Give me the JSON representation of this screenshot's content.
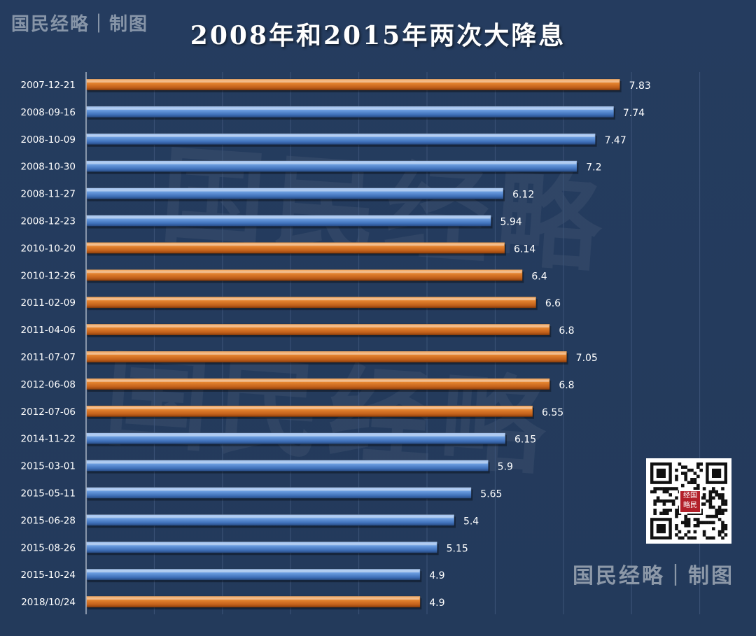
{
  "title": "2008年和2015年两次大降息",
  "brand": {
    "top_left": "国民经略｜制图",
    "bottom_right": "国民经略｜制图",
    "watermark": "国民经略",
    "qr_badge": "经国略民"
  },
  "colors": {
    "background": "#243a5c",
    "hike": "#e07b2a",
    "cut": "#5b8fd6",
    "label": "#ffffff",
    "grid": "#3d5478"
  },
  "chart_data": {
    "type": "bar",
    "orientation": "horizontal",
    "title": "2008年和2015年两次大降息",
    "xlabel": "",
    "ylabel": "",
    "xlim": [
      0,
      10
    ],
    "grid": true,
    "categories": [
      "2007-12-21",
      "2008-09-16",
      "2008-10-09",
      "2008-10-30",
      "2008-11-27",
      "2008-12-23",
      "2010-10-20",
      "2010-12-26",
      "2011-02-09",
      "2011-04-06",
      "2011-07-07",
      "2012-06-08",
      "2012-07-06",
      "2014-11-22",
      "2015-03-01",
      "2015-05-11",
      "2015-06-28",
      "2015-08-26",
      "2015-10-24",
      "2018/10/24"
    ],
    "values": [
      7.83,
      7.74,
      7.47,
      7.2,
      6.12,
      5.94,
      6.14,
      6.4,
      6.6,
      6.8,
      7.05,
      6.8,
      6.55,
      6.15,
      5.9,
      5.65,
      5.4,
      5.15,
      4.9,
      4.9
    ],
    "labels": [
      "7.83",
      "7.74",
      "7.47",
      "7.2",
      "6.12",
      "5.94",
      "6.14",
      "6.4",
      "6.6",
      "6.8",
      "7.05",
      "6.8",
      "6.55",
      "6.15",
      "5.9",
      "5.65",
      "5.4",
      "5.15",
      "4.9",
      "4.9"
    ],
    "bar_colors": [
      "#e07b2a",
      "#5b8fd6",
      "#5b8fd6",
      "#5b8fd6",
      "#5b8fd6",
      "#5b8fd6",
      "#e07b2a",
      "#e07b2a",
      "#e07b2a",
      "#e07b2a",
      "#e07b2a",
      "#e07b2a",
      "#e07b2a",
      "#5b8fd6",
      "#5b8fd6",
      "#5b8fd6",
      "#5b8fd6",
      "#5b8fd6",
      "#5b8fd6",
      "#e07b2a"
    ]
  }
}
